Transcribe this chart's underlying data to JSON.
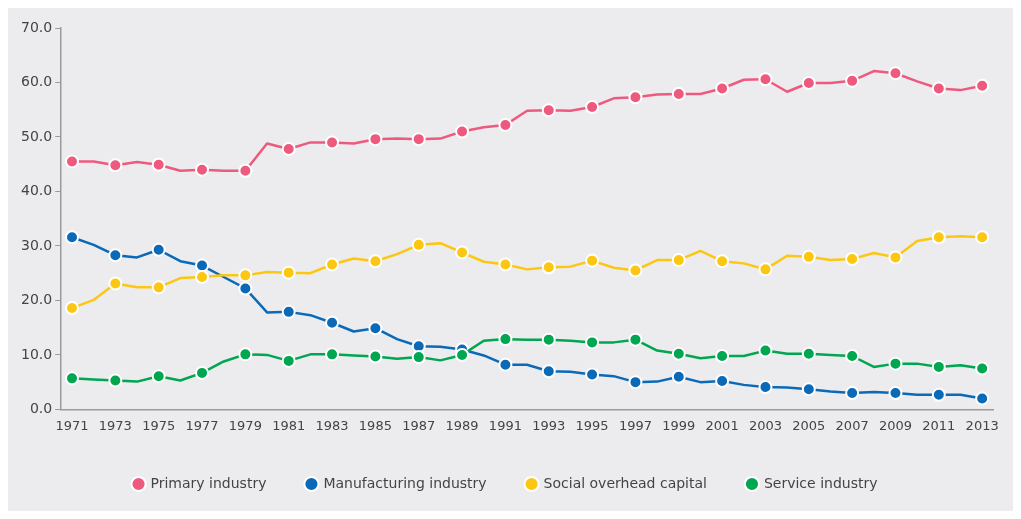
{
  "chart_data": {
    "type": "line",
    "categories": [
      "1971",
      null,
      "1973",
      null,
      "1975",
      null,
      "1977",
      null,
      "1979",
      null,
      "1981",
      null,
      "1983",
      null,
      "1985",
      null,
      "1987",
      null,
      "1989",
      null,
      "1991",
      null,
      "1993",
      null,
      "1995",
      null,
      "1997",
      null,
      "1999",
      null,
      "2001",
      null,
      "2003",
      null,
      "2005",
      null,
      "2007",
      null,
      "2009",
      null,
      "2011",
      null,
      "2013"
    ],
    "series": [
      {
        "name": "Primary industry",
        "color": "#ee5a7e",
        "values": [
          45.5,
          45.5,
          44.8,
          45.4,
          44.9,
          43.8,
          44.0,
          43.8,
          43.8,
          48.8,
          47.8,
          49.0,
          49.0,
          48.8,
          49.6,
          49.7,
          49.6,
          49.7,
          51.0,
          51.8,
          52.2,
          54.8,
          54.9,
          54.8,
          55.5,
          57.1,
          57.3,
          57.8,
          57.9,
          57.9,
          58.9,
          60.5,
          60.6,
          58.3,
          59.9,
          59.9,
          60.3,
          62.1,
          61.7,
          60.2,
          58.9,
          58.6,
          59.4
        ]
      },
      {
        "name": "Manufacturing industry",
        "color": "#0a6ab8",
        "values": [
          31.6,
          30.2,
          28.3,
          27.9,
          29.3,
          27.2,
          26.4,
          24.3,
          22.2,
          17.8,
          17.9,
          17.3,
          15.9,
          14.3,
          14.9,
          12.9,
          11.6,
          11.5,
          11.0,
          9.9,
          8.2,
          8.2,
          7.0,
          6.9,
          6.4,
          6.1,
          5.0,
          5.1,
          6.0,
          5.0,
          5.2,
          4.5,
          4.1,
          4.0,
          3.7,
          3.3,
          3.0,
          3.2,
          3.0,
          2.7,
          2.7,
          2.7,
          2.0
        ]
      },
      {
        "name": "Social overhead capital",
        "color": "#fcc712",
        "values": [
          18.6,
          20.1,
          23.1,
          22.4,
          22.4,
          24.1,
          24.3,
          24.6,
          24.6,
          25.2,
          25.1,
          25.0,
          26.6,
          27.7,
          27.2,
          28.5,
          30.2,
          30.5,
          28.8,
          27.1,
          26.6,
          25.7,
          26.1,
          26.2,
          27.3,
          26.0,
          25.5,
          27.4,
          27.4,
          29.1,
          27.2,
          26.8,
          25.7,
          28.2,
          28.0,
          27.4,
          27.6,
          28.7,
          27.9,
          30.9,
          31.6,
          31.8,
          31.6
        ]
      },
      {
        "name": "Service industry",
        "color": "#00a650",
        "values": [
          5.7,
          5.5,
          5.3,
          5.1,
          6.1,
          5.3,
          6.7,
          8.8,
          10.1,
          10.0,
          8.9,
          10.1,
          10.1,
          9.9,
          9.7,
          9.3,
          9.6,
          9.0,
          10.0,
          12.6,
          12.9,
          12.8,
          12.8,
          12.6,
          12.3,
          12.3,
          12.8,
          10.8,
          10.2,
          9.4,
          9.8,
          9.8,
          10.8,
          10.2,
          10.2,
          10.0,
          9.8,
          7.8,
          8.4,
          8.4,
          7.8,
          8.1,
          7.5
        ]
      }
    ],
    "ylim": [
      0,
      70
    ],
    "yticks": [
      {
        "value": 0,
        "label": "0.0"
      },
      {
        "value": 10,
        "label": "10.0"
      },
      {
        "value": 20,
        "label": "20.0"
      },
      {
        "value": 30,
        "label": "30.0"
      },
      {
        "value": 40,
        "label": "40.0"
      },
      {
        "value": 50,
        "label": "50.0"
      },
      {
        "value": 60,
        "label": "60.0"
      },
      {
        "value": 70,
        "label": "70.0"
      }
    ],
    "grid": false,
    "legend": "bottom",
    "marker": "circle",
    "line_style": "solid"
  }
}
